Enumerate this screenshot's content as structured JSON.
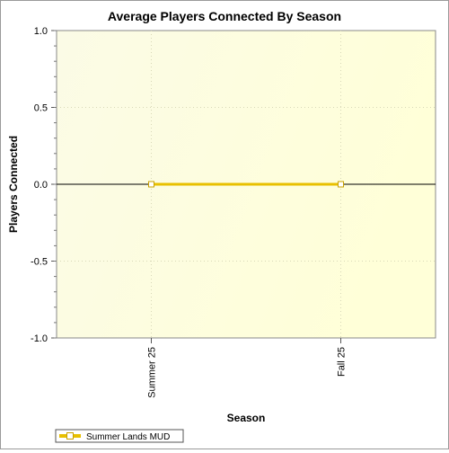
{
  "chart_data": {
    "type": "line",
    "title": "Average Players Connected By Season",
    "xlabel": "Season",
    "ylabel": "Players Connected",
    "categories": [
      "Summer 25",
      "Fall 25"
    ],
    "series": [
      {
        "name": "Summer Lands MUD",
        "values": [
          0.0,
          0.0
        ],
        "color": "#e8c000"
      }
    ],
    "ylim": [
      -1.0,
      1.0
    ],
    "yticks": [
      "-1.0",
      "-0.5",
      "0.0",
      "0.5",
      "1.0"
    ],
    "grid": true,
    "legend": "bottom-left",
    "background_color": "#ffffe8"
  }
}
